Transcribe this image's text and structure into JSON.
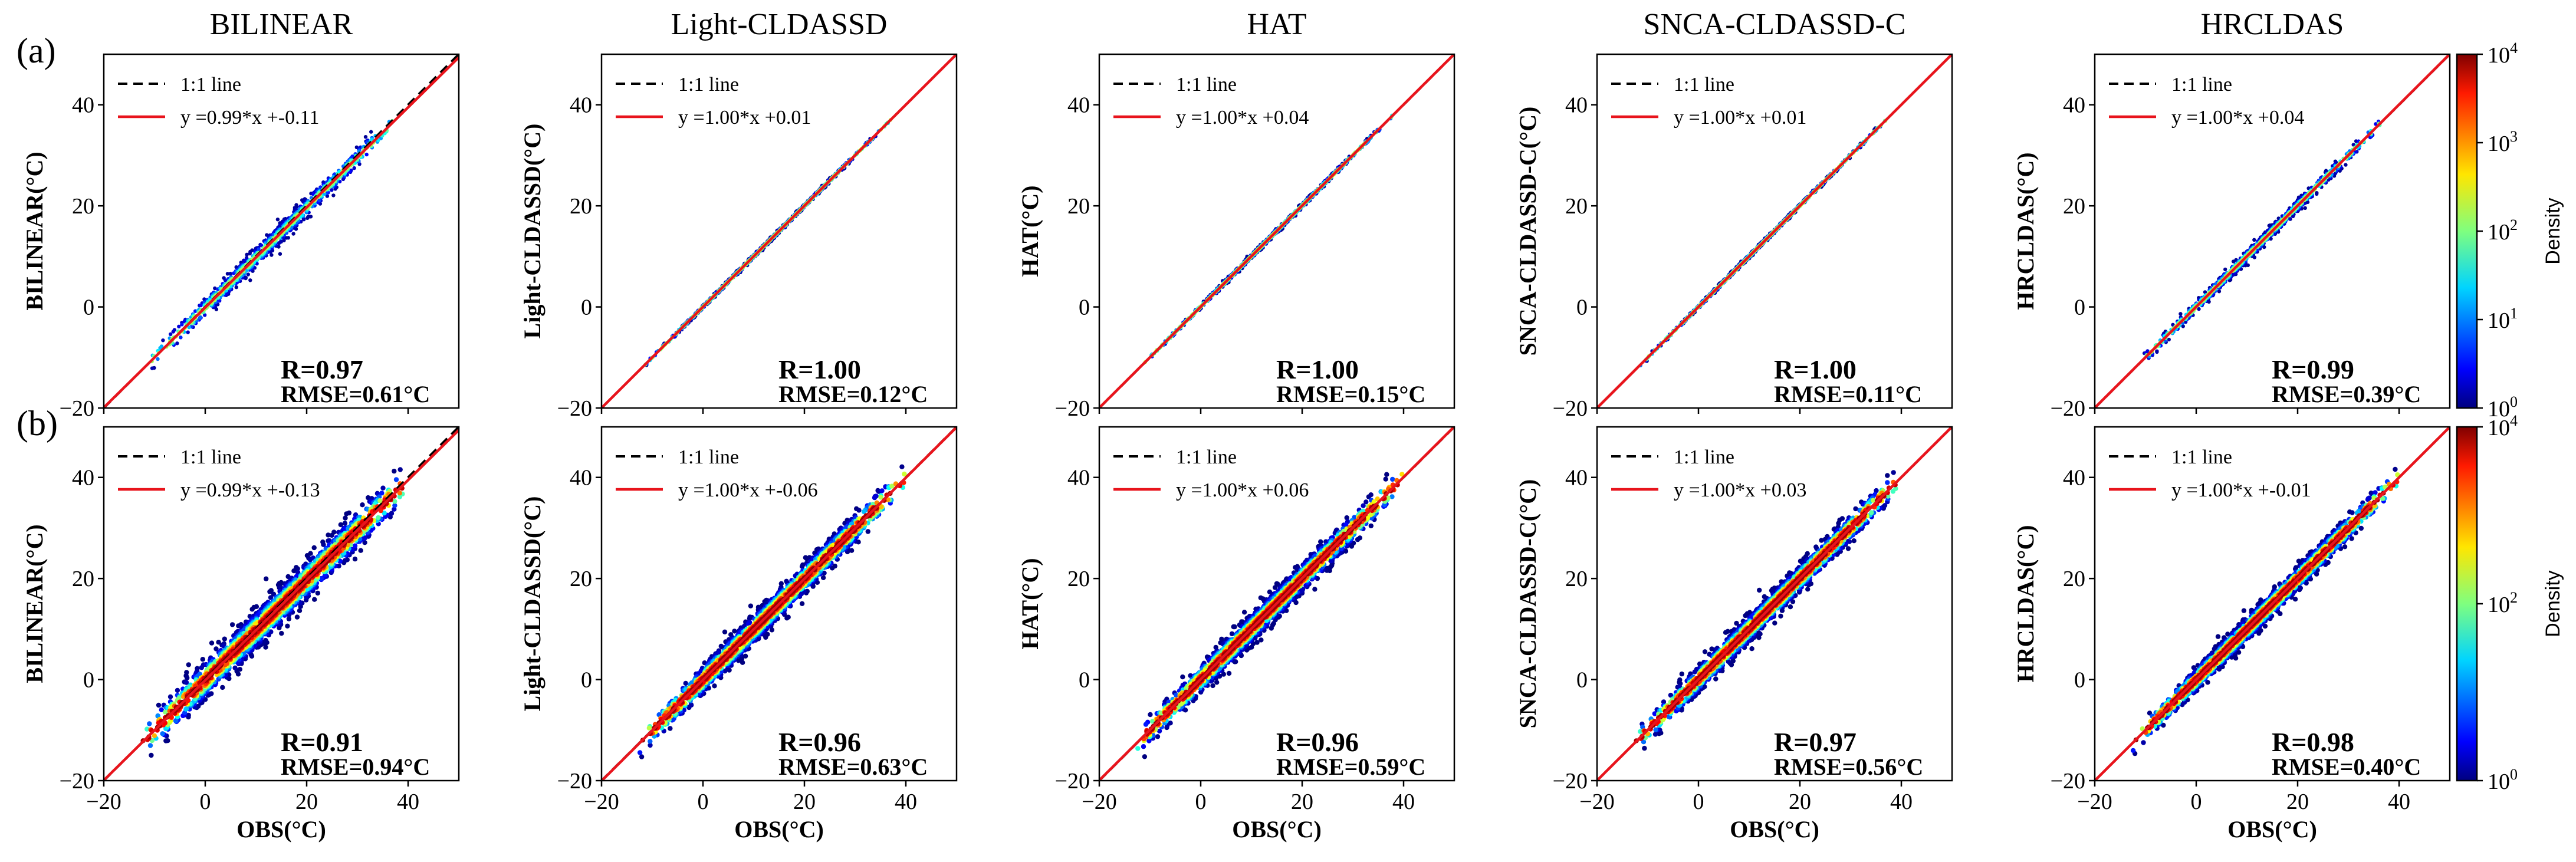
{
  "chart_data": {
    "type": "scatter",
    "axes": {
      "xlabel": "OBS(°C)",
      "xlim": [
        -20,
        50
      ],
      "ylim": [
        -20,
        50
      ],
      "xticks": [
        "−20",
        "0",
        "20",
        "40"
      ],
      "yticks": [
        "−20",
        "0",
        "20",
        "40"
      ]
    },
    "models": [
      "BILINEAR",
      "Light-CLDASSD",
      "HAT",
      "SNCA-CLDASSD-C",
      "HRCLDAS"
    ],
    "ylabels": [
      "BILINEAR(°C)",
      "Light-CLDASSD(°C)",
      "HAT(°C)",
      "SNCA-CLDASSD-C(°C)",
      "HRCLDAS(°C)"
    ],
    "legend": {
      "one_to_one": "1:1 line",
      "position": "top-left"
    },
    "rows": [
      {
        "label": "(a)",
        "colorbar": {
          "label": "Density",
          "ticks": [
            "10",
            "10",
            "10",
            "10",
            "10"
          ],
          "exponents": [
            "0",
            "1",
            "2",
            "3",
            "4"
          ]
        },
        "panels": [
          {
            "fit_label": "y =0.99*x +-0.11",
            "slope": 0.99,
            "intercept": -0.11,
            "r": "R=0.97",
            "rmse": "RMSE=0.61°C",
            "range": [
              -12,
              38
            ],
            "spread": 2.2
          },
          {
            "fit_label": "y =1.00*x +0.01",
            "slope": 1.0,
            "intercept": 0.01,
            "r": "R=1.00",
            "rmse": "RMSE=0.12°C",
            "range": [
              -12,
              38
            ],
            "spread": 0.4
          },
          {
            "fit_label": "y =1.00*x +0.04",
            "slope": 1.0,
            "intercept": 0.04,
            "r": "R=1.00",
            "rmse": "RMSE=0.15°C",
            "range": [
              -12,
              38
            ],
            "spread": 0.5
          },
          {
            "fit_label": "y =1.00*x +0.01",
            "slope": 1.0,
            "intercept": 0.01,
            "r": "R=1.00",
            "rmse": "RMSE=0.11°C",
            "range": [
              -12,
              38
            ],
            "spread": 0.4
          },
          {
            "fit_label": "y =1.00*x +0.04",
            "slope": 1.0,
            "intercept": 0.04,
            "r": "R=0.99",
            "rmse": "RMSE=0.39°C",
            "range": [
              -12,
              38
            ],
            "spread": 1.3
          }
        ]
      },
      {
        "label": "(b)",
        "colorbar": {
          "label": "Density",
          "ticks": [
            "10",
            "10",
            "10"
          ],
          "exponents": [
            "0",
            "2",
            "4"
          ]
        },
        "panels": [
          {
            "fit_label": "y =0.99*x +-0.13",
            "slope": 0.99,
            "intercept": -0.13,
            "r": "R=0.91",
            "rmse": "RMSE=0.94°C",
            "range": [
              -13,
              40
            ],
            "spread": 4.2
          },
          {
            "fit_label": "y =1.00*x +-0.06",
            "slope": 1.0,
            "intercept": -0.06,
            "r": "R=0.96",
            "rmse": "RMSE=0.63°C",
            "range": [
              -13,
              40
            ],
            "spread": 3.2
          },
          {
            "fit_label": "y =1.00*x +0.06",
            "slope": 1.0,
            "intercept": 0.06,
            "r": "R=0.96",
            "rmse": "RMSE=0.59°C",
            "range": [
              -13,
              40
            ],
            "spread": 3.1
          },
          {
            "fit_label": "y =1.00*x +0.03",
            "slope": 1.0,
            "intercept": 0.03,
            "r": "R=0.97",
            "rmse": "RMSE=0.56°C",
            "range": [
              -13,
              40
            ],
            "spread": 2.9
          },
          {
            "fit_label": "y =1.00*x +-0.01",
            "slope": 1.0,
            "intercept": -0.01,
            "r": "R=0.98",
            "rmse": "RMSE=0.40°C",
            "range": [
              -13,
              40
            ],
            "spread": 2.6
          }
        ]
      }
    ]
  }
}
